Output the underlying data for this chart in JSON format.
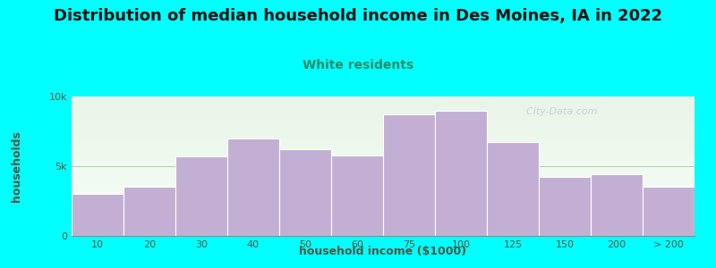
{
  "title": "Distribution of median household income in Des Moines, IA in 2022",
  "subtitle": "White residents",
  "xlabel": "household income ($1000)",
  "ylabel": "households",
  "background_color": "#00FFFF",
  "plot_bg_top": "#e8f5e8",
  "plot_bg_bottom": "#f8fff8",
  "bar_color": "#c4afd4",
  "bar_edge_color": "#ffffff",
  "categories": [
    "10",
    "20",
    "30",
    "40",
    "50",
    "60",
    "75",
    "100",
    "125",
    "150",
    "200",
    "> 200"
  ],
  "values": [
    3000,
    3500,
    5700,
    7000,
    6200,
    5800,
    8700,
    9000,
    6700,
    4200,
    4400,
    3500
  ],
  "ylim": [
    0,
    10000
  ],
  "yticks": [
    0,
    5000,
    10000
  ],
  "ytick_labels": [
    "0",
    "5k",
    "10k"
  ],
  "title_fontsize": 13,
  "subtitle_fontsize": 10,
  "axis_label_fontsize": 9,
  "tick_fontsize": 8,
  "watermark_text": "  City-Data.com",
  "title_color": "#111111",
  "subtitle_color": "#2a8a6a",
  "tick_color": "#555544",
  "axis_label_color": "#555544",
  "hline_color": "#aaccaa",
  "hline_y": 5000
}
